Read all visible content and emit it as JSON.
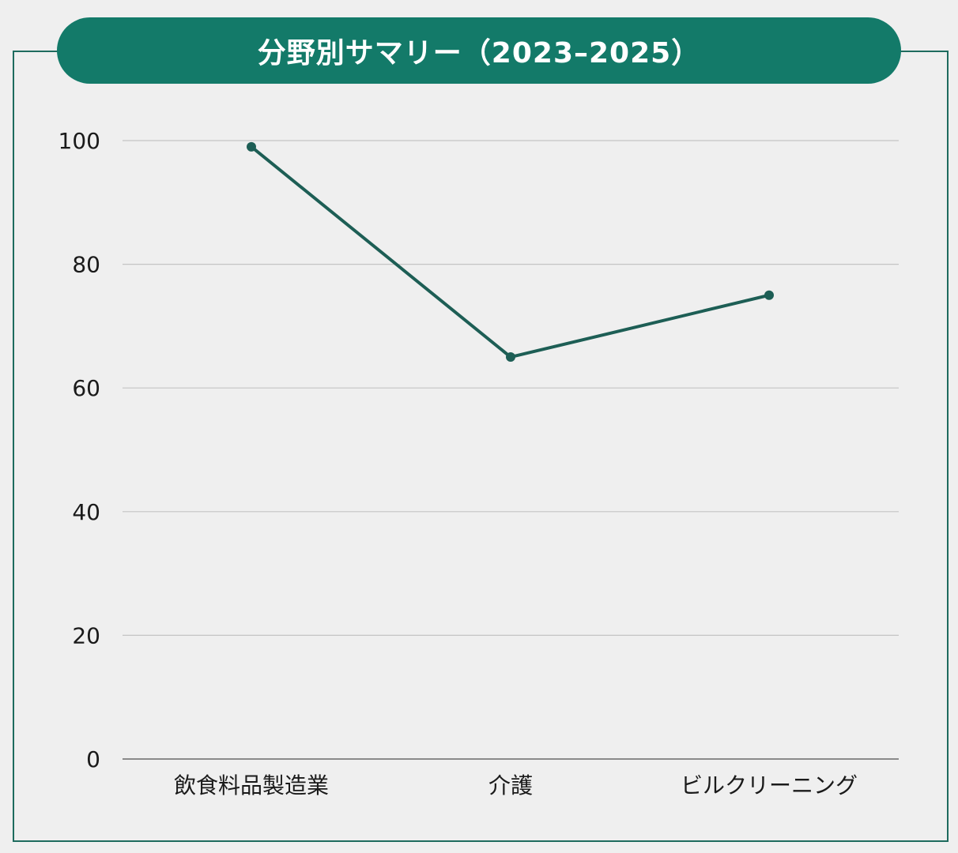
{
  "chart_data": {
    "type": "line",
    "title": "分野別サマリー（2023–2025）",
    "xlabel": "",
    "ylabel": "",
    "categories": [
      "飲食料品製造業",
      "介護",
      "ビルクリーニング"
    ],
    "series": [
      {
        "values": [
          99,
          65,
          75
        ]
      }
    ],
    "ylim": [
      0,
      100
    ],
    "yticks": [
      0,
      20,
      40,
      60,
      80,
      100
    ],
    "grid": true,
    "colors": {
      "line": "#1d5e55",
      "title_bg": "#137a69",
      "frame": "#1e6b5e",
      "grid": "#c4c4c4",
      "axis": "#8a8a8a"
    }
  }
}
